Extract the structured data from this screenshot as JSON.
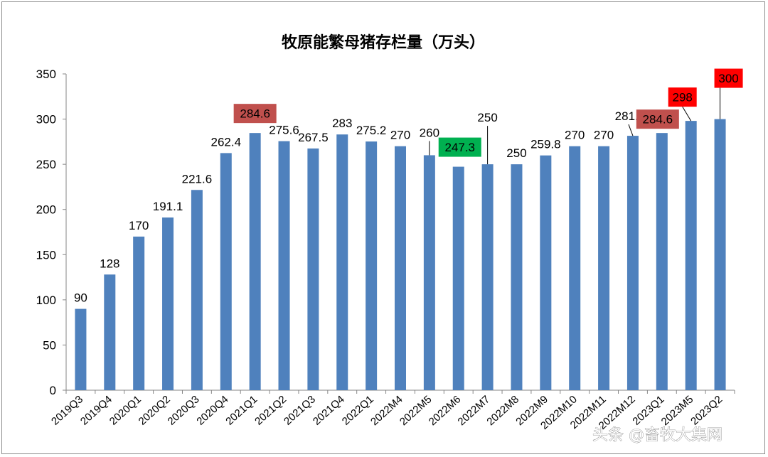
{
  "chart_data": {
    "type": "bar",
    "title": "牧原能繁母猪存栏量（万头）",
    "xlabel": "",
    "ylabel": "",
    "ylim": [
      0,
      350
    ],
    "yticks": [
      0,
      50,
      100,
      150,
      200,
      250,
      300,
      350
    ],
    "grid": false,
    "legend": "none",
    "bar_color": "#4f81bd",
    "categories": [
      "2019Q3",
      "2019Q4",
      "2020Q1",
      "2020Q2",
      "2020Q3",
      "2020Q4",
      "2021Q1",
      "2021Q2",
      "2021Q3",
      "2021Q4",
      "2022Q1",
      "2022M4",
      "2022M5",
      "2022M6",
      "2022M7",
      "2022M8",
      "2022M9",
      "2022M10",
      "2022M11",
      "2022M12",
      "2023Q1",
      "2023M5",
      "2023Q2"
    ],
    "values": [
      90,
      128,
      170,
      191.1,
      221.6,
      262.4,
      284.6,
      275.6,
      267.5,
      283,
      275.2,
      270,
      260,
      247.3,
      250,
      250,
      259.8,
      270,
      270,
      281.5,
      284.6,
      298,
      300
    ],
    "data_labels": [
      "90",
      "128",
      "170",
      "191.1",
      "221.6",
      "262.4",
      "284.6",
      "275.6",
      "267.5",
      "283",
      "275.2",
      "270",
      "260",
      "247.3",
      "250",
      "250",
      "259.8",
      "270",
      "270",
      "281.5",
      "284.6",
      "298",
      "300"
    ],
    "highlighted_labels": [
      {
        "index": 6,
        "color": "#c0504d",
        "text_color": "#000000"
      },
      {
        "index": 13,
        "color": "#00b050",
        "text_color": "#000000"
      },
      {
        "index": 20,
        "color": "#c0504d",
        "text_color": "#000000"
      },
      {
        "index": 21,
        "color": "#ff0000",
        "text_color": "#000000"
      },
      {
        "index": 22,
        "color": "#ff0000",
        "text_color": "#000000"
      }
    ]
  },
  "watermark": "头条 @畜牧大集网"
}
